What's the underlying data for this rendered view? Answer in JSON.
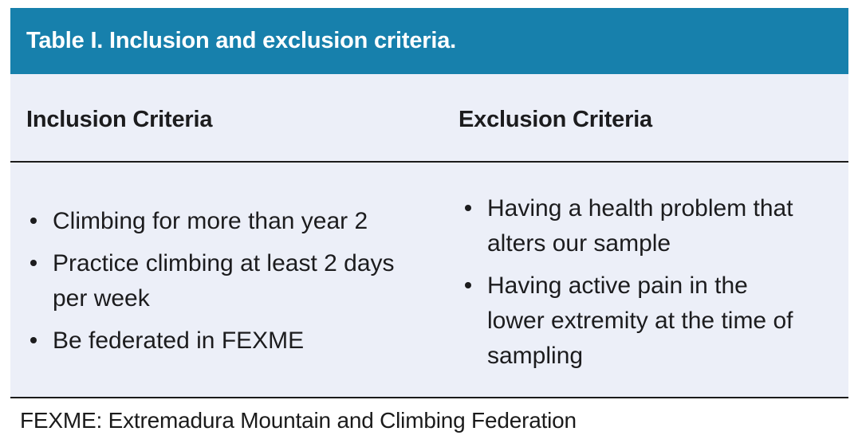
{
  "table": {
    "title": "Table I. Inclusion and exclusion criteria.",
    "columns": [
      {
        "header": "Inclusion Criteria",
        "items": [
          "Climbing for more than year 2",
          "Practice climbing at least 2 days\nper week",
          "Be federated in FEXME"
        ]
      },
      {
        "header": "Exclusion Criteria",
        "items": [
          "Having a health problem that\nalters our sample",
          "Having active pain in the\nlower extremity at the time of\nsampling"
        ]
      }
    ],
    "footnote": "FEXME: Extremadura Mountain and Climbing Federation"
  },
  "colors": {
    "header_bg": "#1780AC",
    "header_text": "#FFFFFF",
    "body_bg": "#ECEFF8",
    "divider": "#1B1B1B",
    "text": "#1C1C1E"
  }
}
